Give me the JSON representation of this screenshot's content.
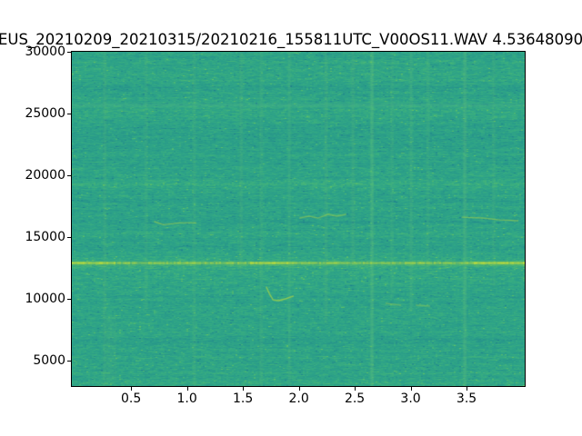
{
  "figure": {
    "title": "EUS_20210209_20210315/20210216_155811UTC_V00OS11.WAV 4.53648090",
    "background_color": "#ffffff"
  },
  "chart_data": {
    "type": "heatmap",
    "subtype": "audio-spectrogram",
    "title": "EUS_20210209_20210315/20210216_155811UTC_V00OS11.WAV 4.53648090",
    "xlabel": "",
    "ylabel": "",
    "colormap": "viridis",
    "grid": false,
    "legend": false,
    "x_range": [
      -0.03,
      4.02
    ],
    "y_range": [
      2940,
      30000
    ],
    "xticks": [
      0.5,
      1.0,
      1.5,
      2.0,
      2.5,
      3.0,
      3.5
    ],
    "xtick_labels": [
      "0.5",
      "1.0",
      "1.5",
      "2.0",
      "2.5",
      "3.0",
      "3.5"
    ],
    "yticks": [
      5000,
      10000,
      15000,
      20000,
      25000,
      30000
    ],
    "ytick_labels": [
      "5000",
      "10000",
      "15000",
      "20000",
      "25000",
      "30000"
    ],
    "noise_seed": 1337,
    "background_palette": [
      "#1e7f8e",
      "#26918b",
      "#2a9d89",
      "#2fa487",
      "#38ad80",
      "#49b677",
      "#63c163"
    ],
    "feature_colors": {
      "tonal_core": "#c8df37",
      "tonal_glow": "#8cc94e",
      "whistle": "#aad446",
      "click_column": "#6ec879",
      "faint_band": "#55bd84"
    },
    "features": {
      "tonal_line": {
        "hz": 12900,
        "thickness_hz": 350,
        "extent_t": [
          -0.03,
          4.02
        ],
        "bright_segments_t": [
          [
            -0.03,
            0.35
          ],
          [
            1.55,
            1.95
          ],
          [
            3.55,
            4.02
          ]
        ]
      },
      "faint_band": {
        "hz": 25700,
        "thickness_hz": 300,
        "extent_t": [
          -0.03,
          4.02
        ]
      },
      "whistles": [
        {
          "alpha": 0.55,
          "points": [
            [
              0.71,
              16250
            ],
            [
              0.79,
              16000
            ],
            [
              0.93,
              16150
            ],
            [
              1.08,
              16150
            ]
          ]
        },
        {
          "alpha": 0.75,
          "points": [
            [
              1.71,
              10950
            ],
            [
              1.74,
              10350
            ],
            [
              1.77,
              9920
            ],
            [
              1.82,
              9850
            ],
            [
              1.88,
              10000
            ],
            [
              1.95,
              10220
            ]
          ]
        },
        {
          "alpha": 0.5,
          "points": [
            [
              2.01,
              16540
            ],
            [
              2.09,
              16690
            ],
            [
              2.17,
              16540
            ],
            [
              2.26,
              16840
            ],
            [
              2.34,
              16690
            ],
            [
              2.42,
              16840
            ]
          ]
        },
        {
          "alpha": 0.55,
          "points": [
            [
              3.46,
              16610
            ],
            [
              3.64,
              16540
            ],
            [
              3.8,
              16390
            ],
            [
              3.96,
              16320
            ]
          ]
        },
        {
          "alpha": 0.4,
          "points": [
            [
              2.78,
              9630
            ],
            [
              2.91,
              9480
            ]
          ]
        },
        {
          "alpha": 0.4,
          "points": [
            [
              3.05,
              9480
            ],
            [
              3.17,
              9410
            ]
          ]
        }
      ],
      "click_columns": [
        {
          "t": 0.26,
          "alpha": 0.1,
          "hz": [
            2940,
            30000
          ]
        },
        {
          "t": 0.63,
          "alpha": 0.09,
          "hz": [
            9000,
            30000
          ]
        },
        {
          "t": 1.06,
          "alpha": 0.09,
          "hz": [
            2940,
            30000
          ]
        },
        {
          "t": 1.48,
          "alpha": 0.1,
          "hz": [
            12000,
            30000
          ]
        },
        {
          "t": 1.66,
          "alpha": 0.09,
          "hz": [
            2940,
            30000
          ]
        },
        {
          "t": 1.91,
          "alpha": 0.12,
          "hz": [
            2940,
            30000
          ]
        },
        {
          "t": 2.24,
          "alpha": 0.1,
          "hz": [
            8000,
            30000
          ]
        },
        {
          "t": 2.48,
          "alpha": 0.1,
          "hz": [
            13000,
            30000
          ]
        },
        {
          "t": 2.65,
          "alpha": 0.22,
          "hz": [
            2940,
            30000
          ]
        },
        {
          "t": 2.83,
          "alpha": 0.09,
          "hz": [
            10000,
            30000
          ]
        },
        {
          "t": 3.0,
          "alpha": 0.13,
          "hz": [
            9000,
            30000
          ]
        },
        {
          "t": 3.15,
          "alpha": 0.09,
          "hz": [
            12000,
            30000
          ]
        },
        {
          "t": 3.48,
          "alpha": 0.18,
          "hz": [
            2940,
            30000
          ]
        },
        {
          "t": 3.74,
          "alpha": 0.09,
          "hz": [
            11000,
            30000
          ]
        }
      ],
      "low_freq_patch": {
        "t": [
          0.28,
          0.37
        ],
        "hz": [
          3400,
          8600
        ],
        "alpha": 0.1
      }
    }
  }
}
